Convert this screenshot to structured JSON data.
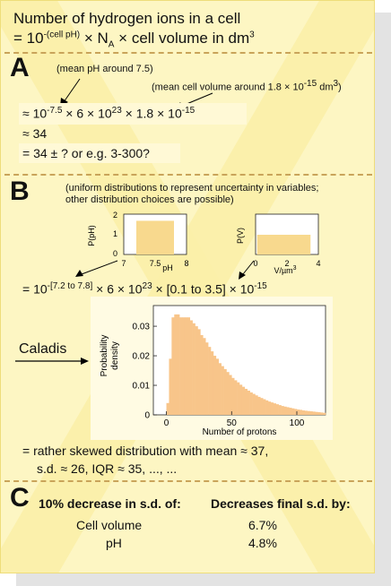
{
  "header": {
    "line1": "Number of hydrogen ions in a cell",
    "line2_eq": "= 10",
    "line2_exp": "-(cell pH)",
    "line2_mid": " × N",
    "line2_sub": "A",
    "line2_end": " × cell volume in dm",
    "line2_unit_exp": "3"
  },
  "section_a": {
    "letter": "A",
    "note_ph": "(mean pH around 7.5)",
    "note_vol": "(mean cell volume around 1.8 × 10",
    "note_vol_exp": "-15",
    "note_vol_unit": " dm",
    "note_vol_unit_exp": "3",
    "note_vol_close": ")",
    "eq1_a": "≈ 10",
    "eq1_a_exp": "-7.5",
    "eq1_b": " × 6 × 10",
    "eq1_b_exp": "23",
    "eq1_c": " × 1.8 × 10",
    "eq1_c_exp": "-15",
    "eq2": "≈ 34",
    "eq3": "= 34 ± ? or e.g. 3-300?"
  },
  "section_b": {
    "letter": "B",
    "note_line1": "(uniform distributions to represent uncertainty in variables;",
    "note_line2": "other distribution choices are possible)",
    "ph_plot": {
      "ylabel": "P(pH)",
      "xlabel": "pH",
      "yticks": [
        "2",
        "1",
        "0"
      ],
      "xticks": [
        "7",
        "7.5",
        "8"
      ],
      "range": [
        7.2,
        7.8
      ],
      "density": 1.67
    },
    "v_plot": {
      "ylabel": "P(V)",
      "xlabel": "V/µm",
      "xlabel_exp": "3",
      "xticks": [
        "0",
        "2",
        "4"
      ],
      "range": [
        0.1,
        3.5
      ]
    },
    "eq_a": "= 10",
    "eq_a_exp": "-[7.2 to 7.8]",
    "eq_b": " × 6 × 10",
    "eq_b_exp": "23",
    "eq_c": " × [0.1 to 3.5] × 10",
    "eq_c_exp": "-15",
    "caladis": "Caladis",
    "summary1": "= rather skewed distribution with mean ≈ 37,",
    "summary2": "s.d. ≈ 26, IQR ≈ 35, ..., ..."
  },
  "histogram": {
    "ylabel1": "Probability",
    "ylabel2": "density",
    "xlabel": "Number of protons",
    "yticks": [
      "0.03",
      "0.02",
      "0.01",
      "0"
    ],
    "xticks": [
      "0",
      "50",
      "100"
    ]
  },
  "section_c": {
    "letter": "C",
    "col1_header": "10% decrease in s.d. of:",
    "col2_header": "Decreases final s.d. by:",
    "rows": [
      {
        "variable": "Cell volume",
        "decrease": "6.7%"
      },
      {
        "variable": "pH",
        "decrease": "4.8%"
      }
    ]
  },
  "chart_data": {
    "type": "area",
    "title": "",
    "xlabel": "Number of protons",
    "ylabel": "Probability density",
    "xlim": [
      -10,
      122
    ],
    "ylim": [
      0,
      0.037
    ],
    "x": [
      0,
      2,
      4,
      6,
      8,
      10,
      12,
      14,
      16,
      18,
      20,
      22,
      24,
      26,
      28,
      30,
      32,
      34,
      36,
      38,
      40,
      42,
      44,
      46,
      48,
      50,
      52,
      54,
      56,
      58,
      60,
      62,
      64,
      66,
      68,
      70,
      72,
      74,
      76,
      78,
      80,
      82,
      84,
      86,
      88,
      90,
      92,
      94,
      96,
      98,
      100,
      102,
      104,
      106,
      108,
      110,
      112,
      114,
      116,
      118,
      120
    ],
    "y": [
      0.004,
      0.019,
      0.033,
      0.034,
      0.034,
      0.033,
      0.033,
      0.033,
      0.033,
      0.032,
      0.031,
      0.03,
      0.029,
      0.027,
      0.026,
      0.0245,
      0.023,
      0.0215,
      0.02,
      0.019,
      0.0175,
      0.0165,
      0.0155,
      0.0145,
      0.0135,
      0.0125,
      0.0117,
      0.011,
      0.0102,
      0.0095,
      0.0088,
      0.0082,
      0.0076,
      0.0071,
      0.0066,
      0.0061,
      0.0057,
      0.0053,
      0.0049,
      0.0045,
      0.0042,
      0.0039,
      0.0036,
      0.0033,
      0.003,
      0.0028,
      0.0026,
      0.0024,
      0.0022,
      0.002,
      0.0018,
      0.0017,
      0.0015,
      0.0014,
      0.0013,
      0.0012,
      0.0011,
      0.001,
      0.0009,
      0.0008,
      0.0007
    ]
  }
}
